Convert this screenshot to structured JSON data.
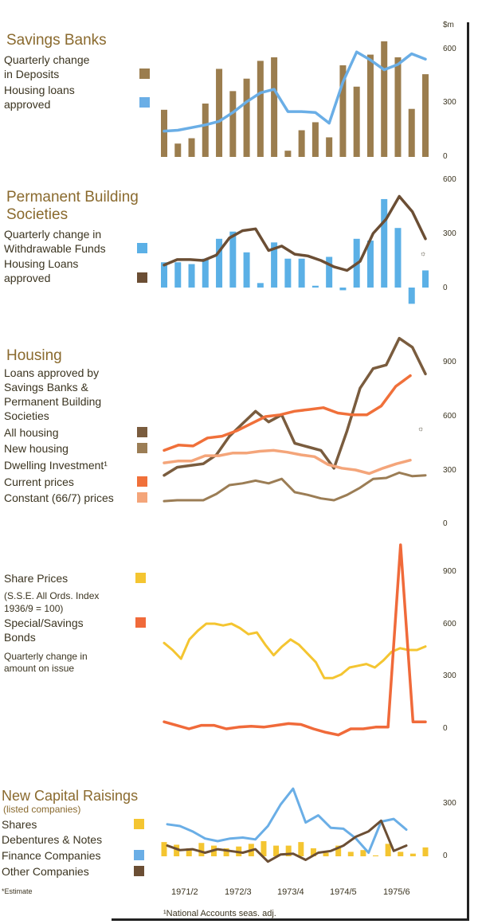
{
  "colors": {
    "sb_deposits": "#9b7d4e",
    "sb_loans": "#6aaee6",
    "pbs_funds": "#5bb0e6",
    "pbs_loans": "#6b4e34",
    "h_all": "#7a5c3e",
    "h_new": "#9b7d55",
    "h_current": "#f0703a",
    "h_constant": "#f4a57a",
    "share": "#f4c531",
    "bonds": "#f06a3a",
    "cap_shares": "#f4c531",
    "cap_fin": "#6aaee6",
    "cap_other": "#6b4e34",
    "title": "#8a6a2e"
  },
  "unit_label": "$m",
  "x_labels": [
    "1971/2",
    "1972/3",
    "1973/4",
    "1974/5",
    "1975/6"
  ],
  "footnotes": {
    "estimate": "*Estimate",
    "seas": "¹National Accounts seas. adj."
  },
  "chart_data": [
    {
      "type": "bar",
      "title": "Savings Banks",
      "series": [
        {
          "name": "Quarterly change in Deposits",
          "type": "bar",
          "values": [
            265,
            75,
            105,
            300,
            495,
            370,
            440,
            540,
            560,
            35,
            150,
            195,
            110,
            515,
            395,
            575,
            650,
            560,
            270,
            465
          ]
        },
        {
          "name": "Housing loans approved",
          "type": "line",
          "values": [
            145,
            150,
            165,
            180,
            200,
            250,
            310,
            360,
            380,
            255,
            255,
            250,
            190,
            420,
            590,
            545,
            490,
            520,
            580,
            550
          ]
        }
      ],
      "yticks": [
        "600",
        "300",
        "0"
      ],
      "ylim": [
        0,
        620
      ]
    },
    {
      "type": "bar",
      "title": "Permanent Building Societies",
      "series": [
        {
          "name": "Quarterly change in Withdrawable Funds",
          "type": "bar",
          "values": [
            140,
            140,
            130,
            160,
            270,
            310,
            195,
            25,
            250,
            160,
            160,
            10,
            170,
            -15,
            270,
            260,
            490,
            330,
            -90,
            95
          ]
        },
        {
          "name": "Housing Loans approved",
          "type": "line",
          "values": [
            125,
            155,
            155,
            150,
            180,
            275,
            315,
            325,
            205,
            230,
            185,
            175,
            150,
            115,
            95,
            145,
            300,
            380,
            505,
            420,
            270
          ]
        }
      ],
      "yticks": [
        "600",
        "300",
        "0"
      ],
      "ylim": [
        -100,
        600
      ]
    },
    {
      "type": "line",
      "title": "Housing",
      "subtitle": "Loans approved by Savings Banks & Permanent Building Societies",
      "series": [
        {
          "name": "All housing",
          "values": [
            270,
            315,
            325,
            335,
            385,
            490,
            560,
            630,
            570,
            610,
            450,
            430,
            410,
            310,
            520,
            760,
            870,
            890,
            1040,
            990,
            840
          ]
        },
        {
          "name": "New housing",
          "values": [
            125,
            130,
            130,
            130,
            165,
            215,
            225,
            240,
            225,
            250,
            175,
            160,
            140,
            130,
            160,
            200,
            250,
            255,
            285,
            265,
            270
          ]
        },
        {
          "name": "Current prices",
          "values": [
            410,
            440,
            435,
            480,
            490,
            520,
            560,
            600,
            610,
            630,
            640,
            650,
            620,
            610,
            610,
            660,
            770,
            830
          ]
        },
        {
          "name": "Constant (66/7) prices",
          "values": [
            340,
            350,
            350,
            380,
            380,
            395,
            395,
            405,
            410,
            400,
            385,
            375,
            330,
            310,
            300,
            280,
            310,
            335,
            355
          ]
        }
      ],
      "legend_heading": "Dwelling Investment¹",
      "yticks": [
        "900",
        "600",
        "300",
        "0"
      ],
      "ylim": [
        0,
        1060
      ]
    },
    {
      "type": "line",
      "title": "Share Prices",
      "series": [
        {
          "name": "Share Prices (S.S.E. All Ords. Index 1936/9 = 100)",
          "values": [
            490,
            450,
            400,
            510,
            560,
            600,
            600,
            590,
            600,
            575,
            540,
            550,
            480,
            420,
            470,
            510,
            480,
            430,
            380,
            290,
            290,
            310,
            350,
            360,
            370,
            350,
            390,
            440,
            460,
            450,
            450,
            470
          ]
        },
        {
          "name": "Special/Savings Bonds (Quarterly change in amount on issue)",
          "values": [
            40,
            20,
            0,
            20,
            20,
            0,
            10,
            15,
            10,
            20,
            30,
            25,
            0,
            -20,
            -35,
            0,
            0,
            10,
            10,
            1050,
            40,
            40
          ]
        }
      ],
      "yticks": [
        "900",
        "600",
        "300",
        "0"
      ],
      "ylim": [
        -80,
        1080
      ]
    },
    {
      "type": "bar",
      "title": "New Capital Raisings",
      "subtitle": "(listed companies)",
      "series": [
        {
          "name": "Shares",
          "type": "bar",
          "values": [
            80,
            65,
            45,
            75,
            60,
            45,
            55,
            70,
            85,
            60,
            60,
            80,
            45,
            20,
            60,
            25,
            35,
            5,
            70,
            25,
            15,
            50
          ]
        },
        {
          "name": "Debentures & Notes",
          "type": "heading"
        },
        {
          "name": "Finance Companies",
          "type": "line",
          "values": [
            180,
            170,
            140,
            100,
            85,
            100,
            105,
            95,
            170,
            290,
            380,
            190,
            230,
            160,
            155,
            100,
            20,
            195,
            210,
            150
          ]
        },
        {
          "name": "Other Companies",
          "type": "line",
          "values": [
            60,
            35,
            40,
            20,
            40,
            30,
            20,
            40,
            -30,
            10,
            15,
            -20,
            20,
            30,
            60,
            110,
            140,
            200,
            30,
            60
          ]
        }
      ],
      "yticks": [
        "300",
        "0"
      ],
      "ylim": [
        -60,
        420
      ]
    }
  ],
  "labels": {
    "sb": {
      "l1": "Quarterly change",
      "l2": "in Deposits",
      "l3": "Housing loans",
      "l4": "approved"
    },
    "pbs": {
      "t1": "Permanent Building",
      "t2": "Societies",
      "l1": "Quarterly change in",
      "l2": "Withdrawable Funds",
      "l3": "Housing Loans",
      "l4": "approved"
    },
    "h": {
      "s1": "Loans approved by",
      "s2": "Savings Banks &",
      "s3": "Permanent Building",
      "s4": "Societies",
      "all": "All housing",
      "new": "New housing",
      "di": "Dwelling Investment¹",
      "cur": "Current prices",
      "con": "Constant (66/7) prices"
    },
    "sp": {
      "t": "Share Prices",
      "s1": "(S.S.E. All Ords. Index",
      "s2": "1936/9 = 100)",
      "b1": "Special/Savings",
      "b2": "Bonds",
      "q1": "Quarterly change in",
      "q2": "amount on issue"
    },
    "cap": {
      "t": "New Capital Raisings",
      "s": "(listed companies)",
      "sh": "Shares",
      "deb": "Debentures & Notes",
      "fin": "Finance Companies",
      "oth": "Other Companies"
    }
  },
  "estimate_mark": "☼"
}
